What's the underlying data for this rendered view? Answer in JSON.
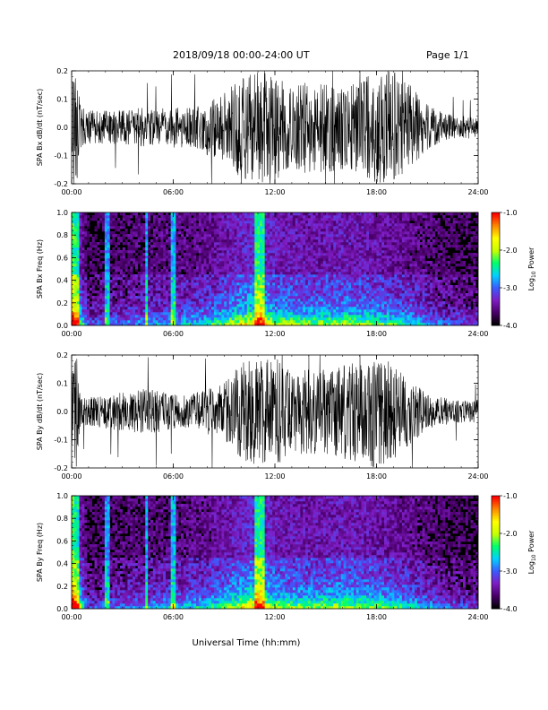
{
  "header": {
    "date_range": "2018/09/18  00:00-24:00 UT",
    "page": "Page 1/1"
  },
  "x_axis_title": "Universal Time (hh:mm)",
  "colors": {
    "trace": "#000000",
    "spectrogram_background": "#000000",
    "colormap": [
      "#000000",
      "#4a006a",
      "#7f1cc4",
      "#3a5cff",
      "#00d2ff",
      "#00ff6a",
      "#c8ff00",
      "#ffff00",
      "#ff8a00",
      "#ff0000"
    ]
  },
  "colorbar": {
    "label": "Log10 Power",
    "label_base": "Log",
    "label_sub": "10",
    "label_rest": " Power",
    "ticks": [
      "-1.0",
      "-2.0",
      "-3.0",
      "-4.0"
    ],
    "range": [
      -4.0,
      -1.0
    ]
  },
  "chart_data": [
    {
      "type": "line",
      "title": "",
      "ylabel": "SPA Bx dB/dt (nT/sec)",
      "xlabel": "",
      "xlim": [
        "00:00",
        "24:00"
      ],
      "ylim": [
        -0.2,
        0.2
      ],
      "x_ticks": [
        "00:00",
        "06:00",
        "12:00",
        "18:00",
        "24:00"
      ],
      "y_ticks": [
        "-0.2",
        "-0.1",
        "0.0",
        "0.1",
        "0.2"
      ],
      "amplitude_envelope": {
        "hours": [
          0,
          0.3,
          0.5,
          1,
          2,
          3,
          4,
          5,
          6,
          7,
          8,
          9,
          10,
          10.5,
          11,
          12,
          13,
          14,
          15,
          16,
          17,
          18,
          19,
          20,
          21,
          22,
          23,
          24
        ],
        "amplitude": [
          0.2,
          0.2,
          0.08,
          0.06,
          0.06,
          0.06,
          0.07,
          0.06,
          0.08,
          0.07,
          0.1,
          0.12,
          0.18,
          0.2,
          0.2,
          0.2,
          0.14,
          0.17,
          0.16,
          0.15,
          0.17,
          0.2,
          0.2,
          0.15,
          0.08,
          0.05,
          0.04,
          0.04
        ]
      }
    },
    {
      "type": "heatmap",
      "title": "",
      "ylabel": "SPA Bx Freq (Hz)",
      "xlabel": "",
      "xlim": [
        "00:00",
        "24:00"
      ],
      "ylim": [
        0.0,
        1.0
      ],
      "x_ticks": [
        "00:00",
        "06:00",
        "12:00",
        "18:00",
        "24:00"
      ],
      "y_ticks": [
        "0.0",
        "0.2",
        "0.4",
        "0.6",
        "0.8",
        "1.0"
      ],
      "value_range": [
        -4.0,
        -1.0
      ],
      "colorbar_label": "Log10 Power"
    },
    {
      "type": "line",
      "title": "",
      "ylabel": "SPA By dB/dt (nT/sec)",
      "xlabel": "",
      "xlim": [
        "00:00",
        "24:00"
      ],
      "ylim": [
        -0.2,
        0.2
      ],
      "x_ticks": [
        "00:00",
        "06:00",
        "12:00",
        "18:00",
        "24:00"
      ],
      "y_ticks": [
        "-0.2",
        "-0.1",
        "0.0",
        "0.1",
        "0.2"
      ],
      "amplitude_envelope": {
        "hours": [
          0,
          0.3,
          0.5,
          1,
          2,
          3,
          4,
          5,
          6,
          7,
          8,
          9,
          10,
          10.5,
          11,
          12,
          13,
          14,
          15,
          16,
          17,
          18,
          19,
          20,
          21,
          22,
          23,
          24
        ],
        "amplitude": [
          0.2,
          0.2,
          0.06,
          0.05,
          0.06,
          0.07,
          0.08,
          0.08,
          0.06,
          0.06,
          0.08,
          0.1,
          0.17,
          0.2,
          0.2,
          0.2,
          0.14,
          0.16,
          0.15,
          0.17,
          0.18,
          0.2,
          0.17,
          0.12,
          0.06,
          0.05,
          0.04,
          0.04
        ]
      }
    },
    {
      "type": "heatmap",
      "title": "",
      "ylabel": "SPA By Freq (Hz)",
      "xlabel": "",
      "xlim": [
        "00:00",
        "24:00"
      ],
      "ylim": [
        0.0,
        1.0
      ],
      "x_ticks": [
        "00:00",
        "06:00",
        "12:00",
        "18:00",
        "24:00"
      ],
      "y_ticks": [
        "0.0",
        "0.2",
        "0.4",
        "0.6",
        "0.8",
        "1.0"
      ],
      "value_range": [
        -4.0,
        -1.0
      ],
      "colorbar_label": "Log10 Power"
    }
  ]
}
